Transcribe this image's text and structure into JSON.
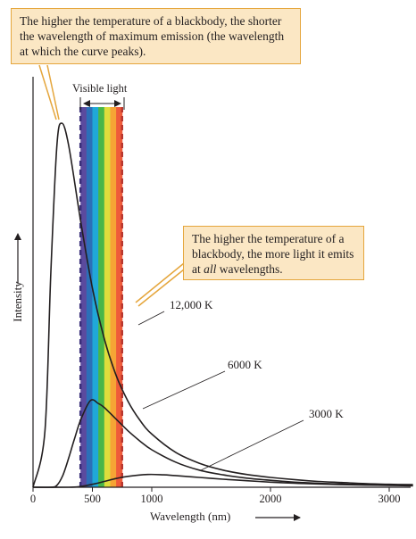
{
  "callouts": {
    "peak_note": "The higher the temperature of a blackbody, the shorter the wavelength of maximum emission (the wavelength at which the curve peaks).",
    "amount_before": "The higher the temperature of a blackbody, the more light it emits at ",
    "amount_em": "all",
    "amount_after": " wavelengths."
  },
  "visible_label": "Visible light",
  "colors": {
    "callout_fill": "#fbe7c4",
    "callout_border": "#e5a63c",
    "curve": "#231f20",
    "band_edge_left": "#3a2f7a",
    "band_edge_right": "#b8362e"
  },
  "chart_data": {
    "type": "line",
    "xlabel": "Wavelength (nm)",
    "ylabel": "Intensity",
    "xlim": [
      0,
      3200
    ],
    "ylim": [
      0,
      1
    ],
    "x_ticks": [
      0,
      500,
      1000,
      2000,
      3000
    ],
    "grid": false,
    "visible_band_nm": [
      400,
      750
    ],
    "series": [
      {
        "name": "12,000 K",
        "x": [
          100,
          150,
          200,
          241,
          300,
          400,
          500,
          600,
          700,
          800,
          900,
          1000,
          1200,
          1400,
          1600,
          1800,
          2000,
          2200,
          2400,
          2600,
          2800,
          3000,
          3200
        ],
        "y": [
          0.153,
          0.593,
          0.934,
          1.0,
          0.939,
          0.733,
          0.547,
          0.408,
          0.307,
          0.236,
          0.184,
          0.146,
          0.096,
          0.066,
          0.047,
          0.035,
          0.027,
          0.021,
          0.016,
          0.013,
          0.01,
          0.008,
          0.007
        ]
      },
      {
        "name": "6000 K",
        "x": [
          150,
          200,
          250,
          300,
          350,
          400,
          483,
          550,
          600,
          700,
          800,
          900,
          1000,
          1200,
          1400,
          1600,
          1800,
          2000,
          2200,
          2400,
          2600,
          2800,
          3000,
          3200
        ],
        "y": [
          0.0,
          0.005,
          0.032,
          0.08,
          0.134,
          0.184,
          0.238,
          0.23,
          0.219,
          0.187,
          0.155,
          0.127,
          0.103,
          0.069,
          0.047,
          0.034,
          0.025,
          0.019,
          0.014,
          0.011,
          0.009,
          0.007,
          0.006,
          0.005
        ]
      },
      {
        "name": "3000 K",
        "x": [
          300,
          400,
          500,
          600,
          700,
          800,
          966,
          1100,
          1200,
          1400,
          1600,
          1800,
          2000,
          2200,
          2400,
          2600,
          2800,
          3000,
          3200
        ],
        "y": [
          0.0,
          0.002,
          0.008,
          0.016,
          0.024,
          0.03,
          0.035,
          0.034,
          0.032,
          0.027,
          0.022,
          0.018,
          0.014,
          0.011,
          0.009,
          0.007,
          0.006,
          0.005,
          0.004
        ]
      }
    ]
  }
}
